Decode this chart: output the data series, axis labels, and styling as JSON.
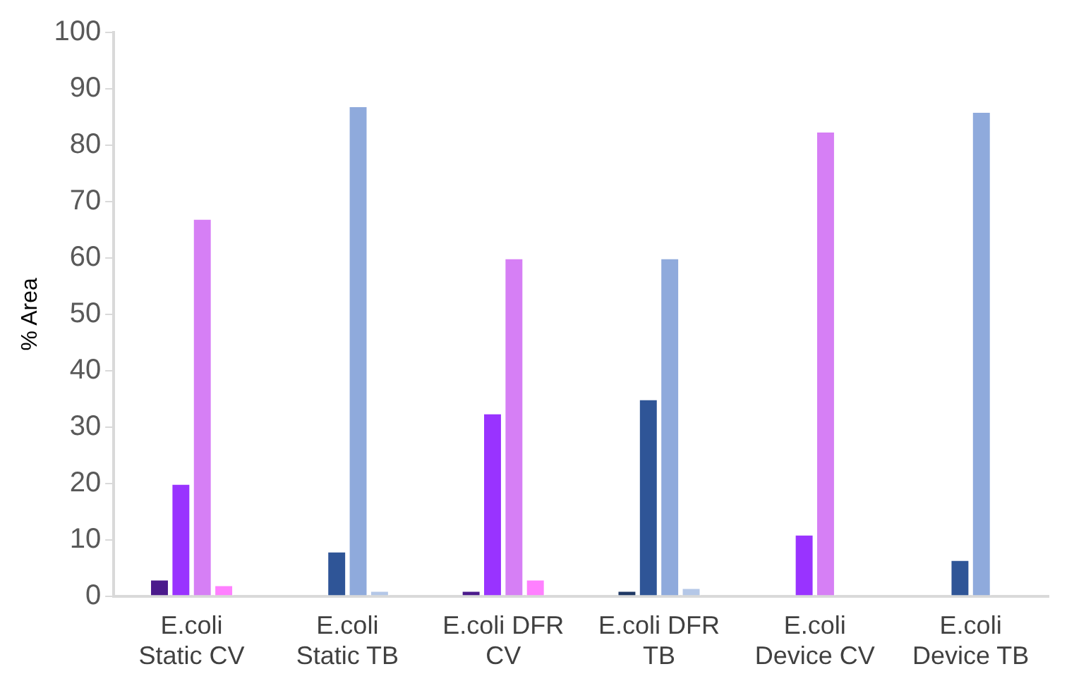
{
  "chart_data": {
    "type": "bar",
    "ylabel": "% Area",
    "categories": [
      "E.coli Static CV",
      "E.coli Static TB",
      "E.coli DFR CV",
      "E.coli DFR TB",
      "E.coli Device CV",
      "E.coli Device TB"
    ],
    "series": [
      {
        "colors": [
          "#4b1a8c",
          "#1f3864",
          "#4b1a8c",
          "#1f3864",
          "#4b1a8c",
          "#1f3864"
        ],
        "values": [
          3,
          0,
          1,
          1,
          0,
          0
        ]
      },
      {
        "colors": [
          "#9933ff",
          "#2f5597",
          "#9933ff",
          "#2f5597",
          "#9933ff",
          "#2f5597"
        ],
        "values": [
          20,
          8,
          32.5,
          35,
          11,
          6.5
        ]
      },
      {
        "colors": [
          "#d67ff5",
          "#8faadc",
          "#d67ff5",
          "#8faadc",
          "#d67ff5",
          "#8faadc"
        ],
        "values": [
          67,
          87,
          60,
          60,
          82.5,
          86
        ]
      },
      {
        "colors": [
          "#ff80ff",
          "#b4c7e7",
          "#ff80ff",
          "#b4c7e7",
          "#ff80ff",
          "#b4c7e7"
        ],
        "values": [
          2,
          1,
          3,
          1.5,
          0,
          0
        ]
      }
    ],
    "ylim": [
      0,
      100
    ],
    "yticks": [
      0,
      10,
      20,
      30,
      40,
      50,
      60,
      70,
      80,
      90,
      100
    ],
    "grid": false,
    "legend": false
  }
}
